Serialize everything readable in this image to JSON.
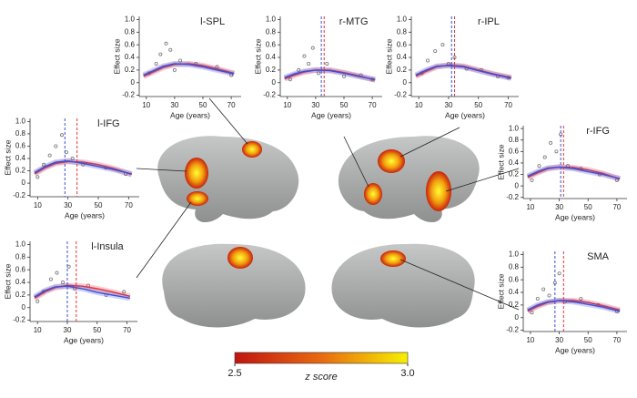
{
  "chart_data": [
    {
      "type": "line",
      "title": "l-SPL",
      "xlabel": "Age (years)",
      "ylabel": "Effect size",
      "xlim": [
        5,
        77
      ],
      "ylim": [
        -0.22,
        1.05
      ],
      "xticks": [
        10,
        30,
        50,
        70
      ],
      "yticks": [
        -0.2,
        0,
        0.2,
        0.4,
        0.6,
        0.8,
        {
          "value": 1,
          "label": "1.0"
        }
      ],
      "x": [
        8,
        15,
        22,
        30,
        40,
        50,
        60,
        72
      ],
      "series": [
        {
          "color": "#e8303a",
          "values": [
            0.1,
            0.17,
            0.24,
            0.29,
            0.3,
            0.27,
            0.22,
            0.15
          ]
        },
        {
          "color": "#3a4fd8",
          "values": [
            0.12,
            0.19,
            0.26,
            0.3,
            0.29,
            0.25,
            0.2,
            0.14
          ]
        }
      ],
      "scatter": {
        "color": "#777",
        "x": [
          12,
          17,
          20,
          24,
          27,
          30,
          34,
          45,
          60,
          70
        ],
        "values": [
          0.15,
          0.3,
          0.45,
          0.62,
          0.52,
          0.2,
          0.35,
          0.3,
          0.25,
          0.12
        ]
      },
      "peaks": []
    },
    {
      "type": "line",
      "title": "r-MTG",
      "xlabel": "Age (years)",
      "ylabel": "Effect size",
      "xlim": [
        5,
        77
      ],
      "ylim": [
        -0.22,
        1.05
      ],
      "xticks": [
        10,
        30,
        50,
        70
      ],
      "yticks": [
        -0.2,
        0,
        0.2,
        0.4,
        0.6,
        0.8,
        {
          "value": 1,
          "label": "1.0"
        }
      ],
      "x": [
        8,
        15,
        22,
        30,
        40,
        50,
        60,
        72
      ],
      "series": [
        {
          "color": "#e8303a",
          "values": [
            0.06,
            0.12,
            0.17,
            0.2,
            0.2,
            0.16,
            0.11,
            0.04
          ]
        },
        {
          "color": "#3a4fd8",
          "values": [
            0.08,
            0.14,
            0.18,
            0.2,
            0.19,
            0.15,
            0.1,
            0.05
          ]
        }
      ],
      "scatter": {
        "color": "#777",
        "x": [
          12,
          18,
          22,
          25,
          28,
          32,
          38,
          50,
          62,
          70
        ],
        "values": [
          0.05,
          0.2,
          0.42,
          0.3,
          0.55,
          0.15,
          0.3,
          0.1,
          0.12,
          0.05
        ]
      },
      "peaks": [
        {
          "color": "#3a4fd8",
          "value": 34
        },
        {
          "color": "#e8303a",
          "value": 36
        }
      ]
    },
    {
      "type": "line",
      "title": "r-IPL",
      "xlabel": "Age (years)",
      "ylabel": "Effect size",
      "xlim": [
        5,
        77
      ],
      "ylim": [
        -0.22,
        1.05
      ],
      "xticks": [
        10,
        30,
        50,
        70
      ],
      "yticks": [
        -0.2,
        0,
        0.2,
        0.4,
        0.6,
        0.8,
        {
          "value": 1,
          "label": "1.0"
        }
      ],
      "x": [
        8,
        15,
        22,
        30,
        40,
        50,
        60,
        72
      ],
      "series": [
        {
          "color": "#e8303a",
          "values": [
            0.1,
            0.18,
            0.25,
            0.28,
            0.26,
            0.2,
            0.14,
            0.08
          ]
        },
        {
          "color": "#3a4fd8",
          "values": [
            0.12,
            0.2,
            0.26,
            0.27,
            0.25,
            0.19,
            0.13,
            0.07
          ]
        }
      ],
      "scatter": {
        "color": "#777",
        "x": [
          12,
          16,
          21,
          26,
          30,
          34,
          42,
          52,
          63,
          70
        ],
        "values": [
          0.15,
          0.35,
          0.5,
          0.6,
          0.3,
          0.4,
          0.22,
          0.2,
          0.1,
          0.08
        ]
      },
      "peaks": [
        {
          "color": "#3a4fd8",
          "value": 32
        },
        {
          "color": "#e8303a",
          "value": 34
        }
      ]
    },
    {
      "type": "line",
      "title": "l-IFG",
      "xlabel": "Age (years)",
      "ylabel": "Effect size",
      "xlim": [
        5,
        77
      ],
      "ylim": [
        -0.22,
        1.05
      ],
      "xticks": [
        10,
        30,
        50,
        70
      ],
      "yticks": [
        -0.2,
        0,
        0.2,
        0.4,
        0.6,
        0.8,
        {
          "value": 1,
          "label": "1.0"
        }
      ],
      "x": [
        8,
        15,
        22,
        30,
        40,
        50,
        60,
        72
      ],
      "series": [
        {
          "color": "#e8303a",
          "values": [
            0.15,
            0.25,
            0.32,
            0.35,
            0.34,
            0.3,
            0.24,
            0.14
          ]
        },
        {
          "color": "#3a4fd8",
          "values": [
            0.17,
            0.27,
            0.34,
            0.36,
            0.32,
            0.27,
            0.22,
            0.15
          ]
        }
      ],
      "scatter": {
        "color": "#777",
        "x": [
          10,
          14,
          18,
          22,
          26,
          29,
          33,
          40,
          55,
          68
        ],
        "values": [
          0.1,
          0.3,
          0.45,
          0.6,
          0.78,
          0.5,
          0.4,
          0.3,
          0.25,
          0.15
        ]
      },
      "peaks": [
        {
          "color": "#3a4fd8",
          "value": 28
        },
        {
          "color": "#e8303a",
          "value": 36
        }
      ]
    },
    {
      "type": "line",
      "title": "r-IFG",
      "xlabel": "Age (years)",
      "ylabel": "Effect size",
      "xlim": [
        5,
        77
      ],
      "ylim": [
        -0.22,
        1.05
      ],
      "xticks": [
        10,
        30,
        50,
        70
      ],
      "yticks": [
        -0.2,
        0,
        0.2,
        0.4,
        0.6,
        0.8,
        {
          "value": 1,
          "label": "1.0"
        }
      ],
      "x": [
        8,
        15,
        22,
        30,
        40,
        50,
        60,
        72
      ],
      "series": [
        {
          "color": "#e8303a",
          "values": [
            0.15,
            0.23,
            0.3,
            0.33,
            0.32,
            0.28,
            0.22,
            0.12
          ]
        },
        {
          "color": "#3a4fd8",
          "values": [
            0.17,
            0.25,
            0.31,
            0.33,
            0.3,
            0.25,
            0.2,
            0.13
          ]
        }
      ],
      "scatter": {
        "color": "#777",
        "x": [
          11,
          16,
          20,
          24,
          28,
          31,
          36,
          45,
          58,
          70
        ],
        "values": [
          0.1,
          0.35,
          0.5,
          0.75,
          0.6,
          0.9,
          0.35,
          0.3,
          0.2,
          0.1
        ]
      },
      "peaks": [
        {
          "color": "#3a4fd8",
          "value": 31
        },
        {
          "color": "#e8303a",
          "value": 33
        }
      ]
    },
    {
      "type": "line",
      "title": "l-Insula",
      "xlabel": "Age (years)",
      "ylabel": "Effect size",
      "xlim": [
        5,
        77
      ],
      "ylim": [
        -0.22,
        1.05
      ],
      "xticks": [
        10,
        30,
        50,
        70
      ],
      "yticks": [
        -0.2,
        0,
        0.2,
        0.4,
        0.6,
        0.8,
        {
          "value": 1,
          "label": "1.0"
        }
      ],
      "x": [
        8,
        15,
        22,
        30,
        40,
        50,
        60,
        72
      ],
      "series": [
        {
          "color": "#e8303a",
          "values": [
            0.15,
            0.25,
            0.32,
            0.35,
            0.34,
            0.3,
            0.25,
            0.18
          ]
        },
        {
          "color": "#3a4fd8",
          "values": [
            0.17,
            0.27,
            0.33,
            0.34,
            0.3,
            0.24,
            0.2,
            0.15
          ]
        }
      ],
      "scatter": {
        "color": "#777",
        "x": [
          10,
          14,
          19,
          23,
          27,
          31,
          35,
          44,
          56,
          68
        ],
        "values": [
          0.1,
          0.25,
          0.45,
          0.55,
          0.4,
          0.65,
          0.3,
          0.35,
          0.2,
          0.25
        ]
      },
      "peaks": [
        {
          "color": "#3a4fd8",
          "value": 30
        },
        {
          "color": "#e8303a",
          "value": 36
        }
      ]
    },
    {
      "type": "line",
      "title": "SMA",
      "xlabel": "Age (years)",
      "ylabel": "Effect size",
      "xlim": [
        5,
        77
      ],
      "ylim": [
        -0.22,
        1.05
      ],
      "xticks": [
        10,
        30,
        50,
        70
      ],
      "yticks": [
        -0.2,
        0,
        0.2,
        0.4,
        0.6,
        0.8,
        {
          "value": 1,
          "label": "1.0"
        }
      ],
      "x": [
        8,
        15,
        22,
        30,
        40,
        50,
        60,
        72
      ],
      "series": [
        {
          "color": "#e8303a",
          "values": [
            0.1,
            0.18,
            0.24,
            0.27,
            0.27,
            0.24,
            0.19,
            0.12
          ]
        },
        {
          "color": "#3a4fd8",
          "values": [
            0.12,
            0.2,
            0.25,
            0.27,
            0.25,
            0.21,
            0.17,
            0.1
          ]
        }
      ],
      "scatter": {
        "color": "#777",
        "x": [
          11,
          15,
          19,
          23,
          27,
          30,
          34,
          45,
          57,
          70
        ],
        "values": [
          0.08,
          0.3,
          0.45,
          0.35,
          0.55,
          0.7,
          0.25,
          0.3,
          0.2,
          0.1
        ]
      },
      "peaks": [
        {
          "color": "#3a4fd8",
          "value": 27
        },
        {
          "color": "#e8303a",
          "value": 33
        }
      ]
    }
  ],
  "colorbar": {
    "label": "z score",
    "lim": [
      2.5,
      3
    ],
    "ticks": [
      2.5,
      {
        "value": 3,
        "label": "3.0"
      }
    ],
    "colors": [
      "#c0150f",
      "#e86a10",
      "#f7f000"
    ]
  }
}
